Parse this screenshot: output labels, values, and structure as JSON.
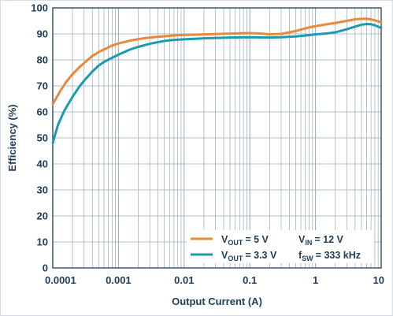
{
  "chart_data": {
    "type": "line",
    "xscale": "log",
    "xlim": [
      0.0001,
      10
    ],
    "ylim": [
      0,
      100
    ],
    "xlabel": "Output Current (A)",
    "ylabel": "Efficiency (%)",
    "x_ticks": [
      {
        "value": 0.0001,
        "label": "0.0001"
      },
      {
        "value": 0.001,
        "label": "0.001"
      },
      {
        "value": 0.01,
        "label": "0.01"
      },
      {
        "value": 0.1,
        "label": "0.1"
      },
      {
        "value": 1,
        "label": "1"
      },
      {
        "value": 10,
        "label": "10"
      }
    ],
    "y_ticks": [
      0,
      10,
      20,
      30,
      40,
      50,
      60,
      70,
      80,
      90,
      100
    ],
    "grid": true,
    "legend_position": "bottom-right",
    "conditions": {
      "vin_prefix": "V",
      "vin_sub": "IN",
      "vin_value": "= 12 V",
      "fsw_prefix": "f",
      "fsw_sub": "SW",
      "fsw_value": "= 333 kHz"
    },
    "series": [
      {
        "name": "VOUT = 5 V",
        "label_prefix": "V",
        "label_sub": "OUT",
        "label_value": "= 5 V",
        "color": "#e8893a",
        "points": [
          [
            0.0001,
            63
          ],
          [
            0.00013,
            68
          ],
          [
            0.00016,
            71.5
          ],
          [
            0.0002,
            74.5
          ],
          [
            0.00025,
            77
          ],
          [
            0.0003,
            78.8
          ],
          [
            0.0004,
            81.5
          ],
          [
            0.0005,
            83
          ],
          [
            0.0006,
            84
          ],
          [
            0.0008,
            85.5
          ],
          [
            0.001,
            86.3
          ],
          [
            0.0015,
            87.4
          ],
          [
            0.002,
            88
          ],
          [
            0.003,
            88.6
          ],
          [
            0.005,
            89.1
          ],
          [
            0.007,
            89.4
          ],
          [
            0.01,
            89.6
          ],
          [
            0.02,
            89.8
          ],
          [
            0.05,
            90.1
          ],
          [
            0.1,
            90.3
          ],
          [
            0.15,
            90.1
          ],
          [
            0.2,
            89.8
          ],
          [
            0.3,
            90
          ],
          [
            0.5,
            91.1
          ],
          [
            0.8,
            92.5
          ],
          [
            1,
            93
          ],
          [
            1.5,
            93.7
          ],
          [
            2,
            94.2
          ],
          [
            3,
            95
          ],
          [
            4,
            95.6
          ],
          [
            5,
            95.8
          ],
          [
            6,
            95.8
          ],
          [
            7,
            95.6
          ],
          [
            8,
            95.2
          ],
          [
            10,
            94.5
          ]
        ]
      },
      {
        "name": "VOUT = 3.3 V",
        "label_prefix": "V",
        "label_sub": "OUT",
        "label_value": "= 3.3 V",
        "color": "#1a9bb0",
        "points": [
          [
            0.0001,
            48
          ],
          [
            0.00012,
            55
          ],
          [
            0.00015,
            60.5
          ],
          [
            0.0002,
            65.8
          ],
          [
            0.00025,
            69.5
          ],
          [
            0.0003,
            72
          ],
          [
            0.0004,
            75.5
          ],
          [
            0.0005,
            77.8
          ],
          [
            0.0006,
            79.2
          ],
          [
            0.0008,
            80.8
          ],
          [
            0.001,
            82
          ],
          [
            0.0015,
            84
          ],
          [
            0.002,
            85
          ],
          [
            0.003,
            86.2
          ],
          [
            0.005,
            87.3
          ],
          [
            0.007,
            87.7
          ],
          [
            0.01,
            87.9
          ],
          [
            0.02,
            88.3
          ],
          [
            0.05,
            88.6
          ],
          [
            0.1,
            88.7
          ],
          [
            0.2,
            88.6
          ],
          [
            0.3,
            88.7
          ],
          [
            0.5,
            89
          ],
          [
            0.8,
            89.5
          ],
          [
            1,
            89.8
          ],
          [
            1.5,
            90.2
          ],
          [
            2,
            90.6
          ],
          [
            3,
            91.8
          ],
          [
            4,
            92.8
          ],
          [
            5,
            93.5
          ],
          [
            6,
            93.8
          ],
          [
            7,
            93.7
          ],
          [
            8,
            93.3
          ],
          [
            10,
            92.3
          ]
        ]
      }
    ]
  }
}
